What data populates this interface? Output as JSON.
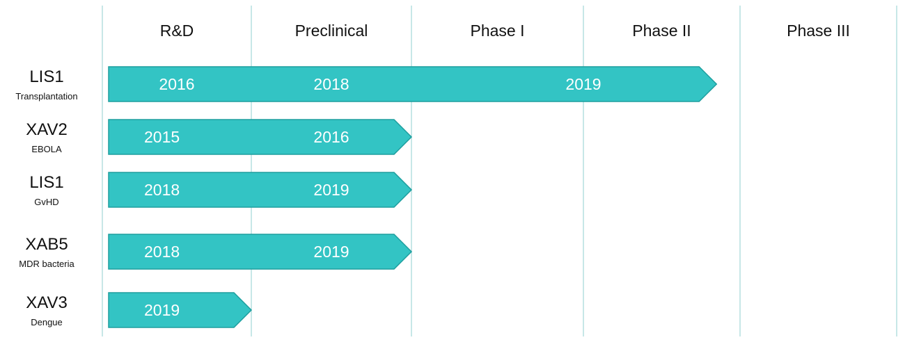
{
  "colors": {
    "bar_fill": "#33C4C4",
    "bar_stroke": "#1E9E9E",
    "divider": "#8FCFCF",
    "year_text": "#FFFFFF"
  },
  "phases": [
    "R&D",
    "Preclinical",
    "Phase I",
    "Phase II",
    "Phase III"
  ],
  "programs": [
    {
      "name": "LIS1",
      "indication": "Transplantation",
      "end_phase": 3.85,
      "years": [
        {
          "label": "2016",
          "phase": 0.5
        },
        {
          "label": "2018",
          "phase": 1.5
        },
        {
          "label": "2019",
          "phase": 3.0
        }
      ]
    },
    {
      "name": "XAV2",
      "indication": "EBOLA",
      "end_phase": 2.0,
      "years": [
        {
          "label": "2015",
          "phase": 0.4
        },
        {
          "label": "2016",
          "phase": 1.5
        }
      ]
    },
    {
      "name": "LIS1",
      "indication": "GvHD",
      "end_phase": 2.0,
      "years": [
        {
          "label": "2018",
          "phase": 0.4
        },
        {
          "label": "2019",
          "phase": 1.5
        }
      ]
    },
    {
      "name": "XAB5",
      "indication": "MDR bacteria",
      "end_phase": 2.0,
      "years": [
        {
          "label": "2018",
          "phase": 0.4
        },
        {
          "label": "2019",
          "phase": 1.5
        }
      ]
    },
    {
      "name": "XAV3",
      "indication": "Dengue",
      "end_phase": 1.0,
      "years": [
        {
          "label": "2019",
          "phase": 0.4
        }
      ]
    }
  ]
}
